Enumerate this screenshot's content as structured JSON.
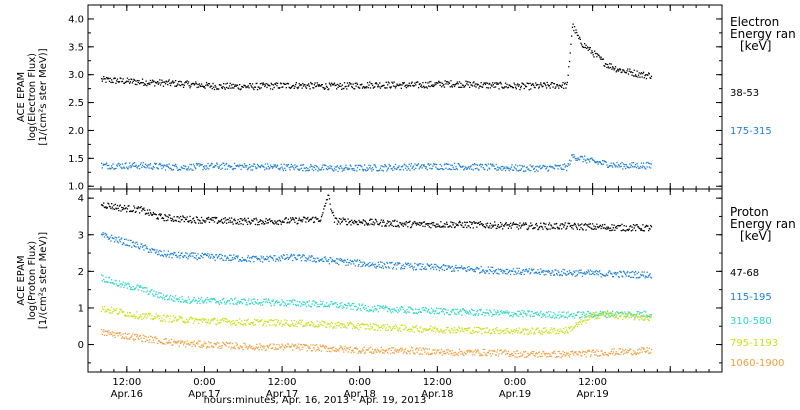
{
  "chart_data": [
    {
      "type": "scatter",
      "panel": "electron",
      "ylabel_lines": [
        "ACE EPAM",
        "log(Electron Flux)",
        "[1/(cm²s ster MeV)]"
      ],
      "ylim": [
        0.95,
        4.25
      ],
      "yticks": [
        "1.0",
        "1.5",
        "2.0",
        "2.5",
        "3.0",
        "3.5",
        "4.0"
      ],
      "ytick_values": [
        1.0,
        1.5,
        2.0,
        2.5,
        3.0,
        3.5,
        4.0
      ],
      "legend_title_lines": [
        "Electron",
        "Energy ran",
        "[keV]"
      ],
      "series": [
        {
          "name": "38-53",
          "color": "#000000",
          "x": [
            0,
            6,
            12,
            18,
            24,
            30,
            36,
            42,
            48,
            54,
            60,
            66,
            70,
            72,
            72.8,
            74,
            76,
            78,
            80,
            82,
            84,
            85
          ],
          "y": [
            2.92,
            2.88,
            2.85,
            2.8,
            2.8,
            2.82,
            2.8,
            2.83,
            2.82,
            2.85,
            2.82,
            2.8,
            2.82,
            2.82,
            3.9,
            3.6,
            3.4,
            3.2,
            3.1,
            3.05,
            3.0,
            3.0
          ]
        },
        {
          "name": "175-315",
          "color": "#1e7fd6",
          "x": [
            0,
            6,
            12,
            18,
            24,
            30,
            36,
            42,
            48,
            54,
            60,
            66,
            72,
            72.8,
            76,
            80,
            85
          ],
          "y": [
            1.38,
            1.38,
            1.35,
            1.37,
            1.36,
            1.35,
            1.33,
            1.34,
            1.36,
            1.37,
            1.35,
            1.33,
            1.35,
            1.55,
            1.45,
            1.38,
            1.38
          ]
        }
      ]
    },
    {
      "type": "scatter",
      "panel": "proton",
      "ylabel_lines": [
        "ACE EPAM",
        "log(Proton Flux)",
        "[1/(cm²s ster MeV)]"
      ],
      "ylim": [
        -0.75,
        4.25
      ],
      "yticks": [
        "0",
        "1",
        "2",
        "3",
        "4"
      ],
      "ytick_values": [
        0,
        1,
        2,
        3,
        4
      ],
      "legend_title_lines": [
        "Proton",
        "Energy ran",
        "[keV]"
      ],
      "series": [
        {
          "name": "47-68",
          "color": "#000000",
          "x": [
            0,
            3,
            6,
            9,
            12,
            18,
            24,
            30,
            34,
            35,
            36,
            38,
            42,
            48,
            54,
            60,
            66,
            72,
            78,
            85
          ],
          "y": [
            3.85,
            3.75,
            3.7,
            3.5,
            3.45,
            3.4,
            3.38,
            3.4,
            3.45,
            4.1,
            3.4,
            3.38,
            3.35,
            3.3,
            3.3,
            3.28,
            3.25,
            3.25,
            3.22,
            3.2
          ]
        },
        {
          "name": "115-195",
          "color": "#1e7fd6",
          "x": [
            0,
            3,
            6,
            9,
            12,
            18,
            24,
            30,
            36,
            42,
            48,
            54,
            60,
            66,
            72,
            78,
            85
          ],
          "y": [
            3.0,
            2.85,
            2.7,
            2.5,
            2.45,
            2.4,
            2.35,
            2.4,
            2.3,
            2.2,
            2.15,
            2.1,
            2.05,
            2.0,
            1.98,
            1.95,
            1.92
          ]
        },
        {
          "name": "310-580",
          "color": "#2fd7c8",
          "x": [
            0,
            3,
            6,
            9,
            12,
            18,
            24,
            30,
            36,
            42,
            48,
            54,
            60,
            66,
            72,
            78,
            85
          ],
          "y": [
            1.85,
            1.65,
            1.55,
            1.35,
            1.25,
            1.2,
            1.18,
            1.15,
            1.1,
            1.0,
            0.95,
            0.92,
            0.88,
            0.85,
            0.82,
            0.85,
            0.85
          ]
        },
        {
          "name": "795-1193",
          "color": "#c6e21a",
          "x": [
            0,
            6,
            12,
            18,
            24,
            30,
            36,
            42,
            48,
            54,
            60,
            66,
            72,
            74,
            76,
            78,
            80,
            85
          ],
          "y": [
            1.0,
            0.8,
            0.7,
            0.65,
            0.62,
            0.6,
            0.55,
            0.5,
            0.45,
            0.42,
            0.4,
            0.38,
            0.4,
            0.6,
            0.8,
            0.85,
            0.8,
            0.75
          ]
        },
        {
          "name": "1060-1900",
          "color": "#f0a040",
          "x": [
            0,
            6,
            12,
            18,
            24,
            30,
            36,
            42,
            48,
            54,
            60,
            66,
            72,
            78,
            85
          ],
          "y": [
            0.35,
            0.2,
            0.05,
            0.0,
            -0.05,
            -0.05,
            -0.1,
            -0.15,
            -0.15,
            -0.2,
            -0.2,
            -0.25,
            -0.25,
            -0.2,
            -0.15
          ]
        }
      ]
    }
  ],
  "x_axis": {
    "xlim": [
      -2,
      96
    ],
    "major_tick_values": [
      4,
      16,
      28,
      40,
      52,
      64,
      76,
      88
    ],
    "tick_labels": [
      {
        "time": "12:00",
        "date": "Apr.16"
      },
      {
        "time": "0:00",
        "date": "Apr.17"
      },
      {
        "time": "12:00",
        "date": "Apr.17"
      },
      {
        "time": "0:00",
        "date": "Apr.18"
      },
      {
        "time": "12:00",
        "date": "Apr.18"
      },
      {
        "time": "0:00",
        "date": "Apr.19"
      },
      {
        "time": "12:00",
        "date": "Apr.19"
      },
      {
        "time": "",
        "date": ""
      }
    ],
    "title": "hours:minutes, Apr. 16, 2013 - Apr. 19, 2013"
  }
}
